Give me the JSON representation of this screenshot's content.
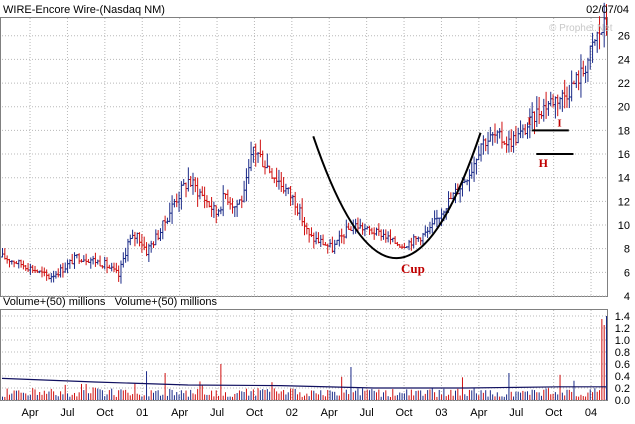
{
  "chart_data": {
    "type": "ohlc-bar",
    "title": "WIRE-Encore Wire-(Nasdaq NM)",
    "date": "02/07/04",
    "watermark": "© Prophet.Net",
    "volume_label": "Volume+(50) millions   Volume+(50) millions",
    "price_axis": {
      "ylim": [
        4,
        27.5
      ],
      "ticks": [
        "4",
        "6",
        "8",
        "10",
        "12",
        "14",
        "16",
        "18",
        "20",
        "22",
        "24",
        "26"
      ]
    },
    "volume_axis": {
      "ylim": [
        0,
        1.5
      ],
      "ticks": [
        "0.0",
        "0.2",
        "0.4",
        "0.6",
        "0.8",
        "1.0",
        "1.2",
        "1.4"
      ]
    },
    "x_ticks": [
      "Apr",
      "Jul",
      "Oct",
      "01",
      "Apr",
      "Jul",
      "Oct",
      "02",
      "Apr",
      "Jul",
      "Oct",
      "03",
      "Apr",
      "Jul",
      "Oct",
      "04"
    ],
    "price_series": {
      "name": "weekly price",
      "x_range": [
        0,
        260
      ],
      "x": [
        0,
        8,
        14,
        20,
        26,
        32,
        38,
        44,
        50,
        54,
        58,
        62,
        68,
        74,
        80,
        86,
        92,
        96,
        100,
        104,
        106,
        108,
        114,
        120,
        126,
        132,
        138,
        142,
        148,
        152,
        158,
        164,
        168,
        172,
        178,
        184,
        190,
        196,
        202,
        206,
        212,
        218,
        224,
        230,
        236,
        242,
        248,
        250,
        252,
        254,
        256,
        258,
        260
      ],
      "y": [
        7.3,
        6.7,
        6.2,
        5.6,
        6.3,
        7.3,
        7.1,
        6.7,
        5.7,
        8.5,
        9.2,
        7.8,
        9.5,
        12.0,
        13.8,
        12.5,
        11.0,
        12.6,
        11.6,
        12.5,
        14.5,
        16.5,
        15.0,
        13.5,
        12.0,
        9.0,
        8.5,
        8.0,
        9.5,
        10.0,
        9.5,
        9.2,
        8.6,
        8.3,
        8.8,
        9.5,
        11.5,
        13.0,
        14.8,
        17.0,
        17.5,
        17.0,
        17.8,
        19.5,
        20.5,
        21.0,
        22.5,
        23.0,
        24.0,
        25.0,
        26.0,
        26.5,
        27.0
      ],
      "volatility": [
        0.7,
        0.6,
        0.6,
        0.6,
        0.7,
        0.7,
        0.7,
        0.7,
        0.8,
        0.9,
        0.9,
        0.9,
        1.0,
        1.2,
        1.4,
        1.2,
        1.1,
        1.2,
        1.1,
        1.2,
        1.3,
        1.5,
        1.5,
        1.4,
        1.2,
        0.9,
        0.9,
        0.8,
        0.8,
        0.8,
        0.7,
        0.7,
        0.7,
        0.7,
        0.8,
        0.9,
        1.0,
        1.1,
        1.2,
        1.3,
        1.3,
        1.3,
        1.3,
        1.4,
        1.5,
        1.5,
        1.6,
        1.6,
        1.7,
        1.8,
        1.9,
        2.0,
        2.1
      ]
    },
    "volume_series": {
      "name": "Volume",
      "base_range": [
        0.05,
        0.2
      ],
      "spikes": [
        {
          "x": 62,
          "value": 0.48
        },
        {
          "x": 70,
          "value": 0.45
        },
        {
          "x": 94,
          "value": 0.6
        },
        {
          "x": 150,
          "value": 0.55
        },
        {
          "x": 218,
          "value": 0.45
        },
        {
          "x": 240,
          "value": 0.42
        },
        {
          "x": 258,
          "value": 1.35
        },
        {
          "x": 259,
          "value": 1.25
        },
        {
          "x": 260,
          "value": 1.4
        }
      ],
      "moving_average": {
        "x": [
          0,
          40,
          80,
          120,
          160,
          200,
          240,
          260
        ],
        "y": [
          0.36,
          0.3,
          0.25,
          0.24,
          0.2,
          0.2,
          0.22,
          0.22
        ]
      }
    },
    "annotations": {
      "cup_label": "Cup",
      "handle_label": "H",
      "top_label_1": "I",
      "top_label_2": "I",
      "cup_curve": {
        "x": [
          134,
          170,
          206
        ],
        "y": [
          17.5,
          7.2,
          17.8
        ]
      },
      "handle_lines": [
        {
          "x": [
            228,
            244
          ],
          "y": [
            18.0,
            18.0
          ]
        },
        {
          "x": [
            230,
            246
          ],
          "y": [
            16.0,
            16.0
          ]
        }
      ]
    }
  }
}
